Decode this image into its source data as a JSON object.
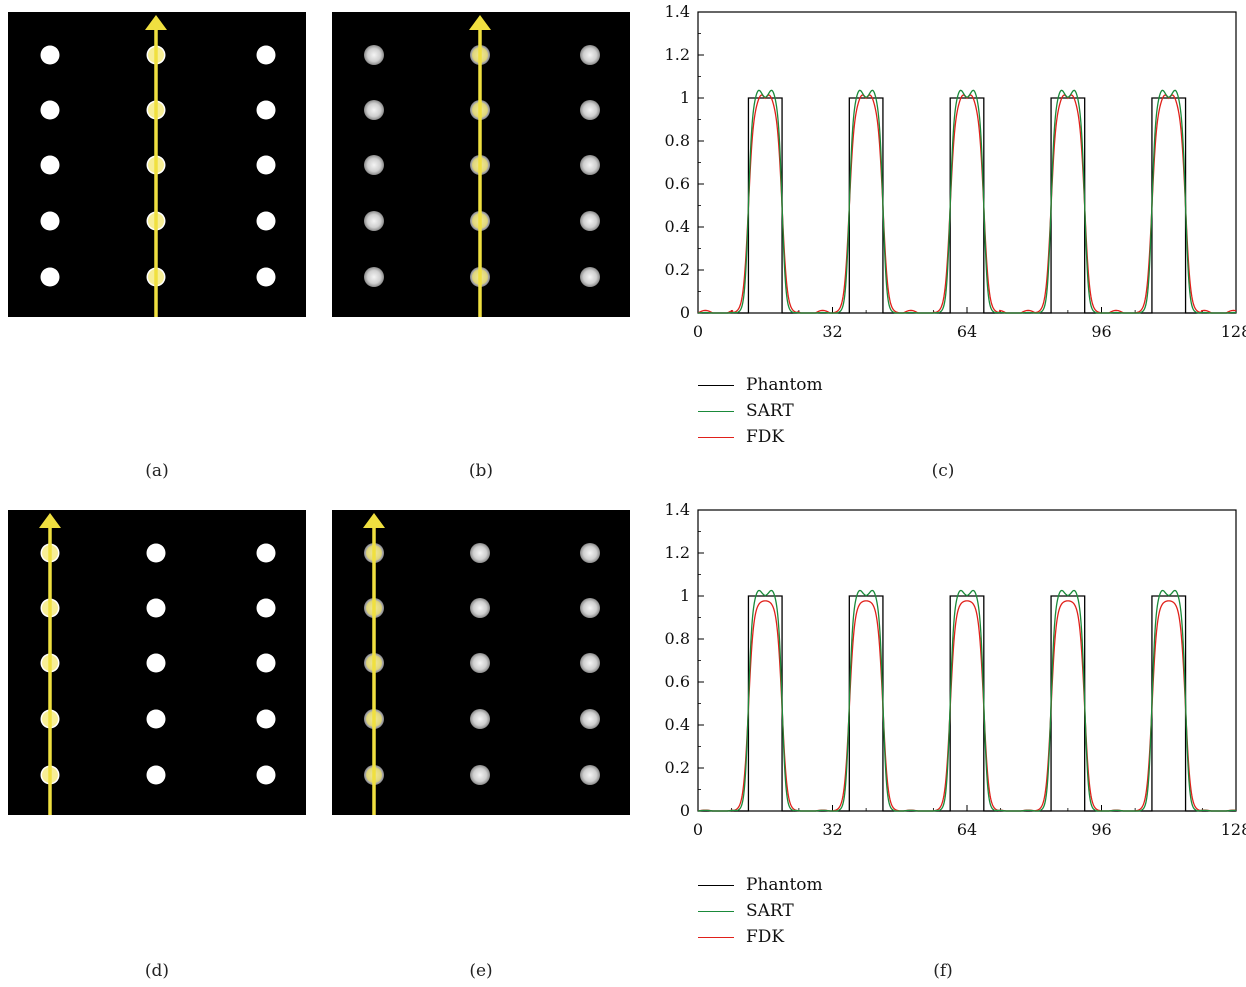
{
  "captions": {
    "a": "(a)",
    "b": "(b)",
    "c": "(c)",
    "d": "(d)",
    "e": "(e)",
    "f": "(f)"
  },
  "colors": {
    "phantom": "#000000",
    "sart": "#1a8a3a",
    "fdk": "#e0201a",
    "arrow": "#f0e040",
    "dot_sharp": "#ffffff",
    "dot_soft": "#d8d8d8"
  },
  "images": {
    "a": {
      "arrow_column": 2,
      "style": "sharp"
    },
    "b": {
      "arrow_column": 2,
      "style": "soft"
    },
    "d": {
      "arrow_column": 1,
      "style": "sharp"
    },
    "e": {
      "arrow_column": 1,
      "style": "soft"
    }
  },
  "chart_data": [
    {
      "panel": "c",
      "type": "line",
      "xlim": [
        0,
        128
      ],
      "ylim": [
        0,
        1.4
      ],
      "x_ticks": [
        "0",
        "32",
        "64",
        "96",
        "128"
      ],
      "y_ticks": [
        "0",
        "0.2",
        "0.4",
        "0.6",
        "0.8",
        "1",
        "1.2",
        "1.4"
      ],
      "legend_position": "bottom-left",
      "pulses": [
        {
          "start": 12,
          "end": 20
        },
        {
          "start": 36,
          "end": 44
        },
        {
          "start": 60,
          "end": 68
        },
        {
          "start": 84,
          "end": 92
        },
        {
          "start": 108,
          "end": 116
        }
      ],
      "series": [
        {
          "name": "Phantom",
          "peak": 1.0,
          "overshoot": 0.0,
          "ripple": 0.0
        },
        {
          "name": "SART",
          "peak": 1.0,
          "overshoot": 0.04,
          "ripple": 0.002
        },
        {
          "name": "FDK",
          "peak": 1.0,
          "overshoot": 0.03,
          "ripple": 0.012
        }
      ]
    },
    {
      "panel": "f",
      "type": "line",
      "xlim": [
        0,
        128
      ],
      "ylim": [
        0,
        1.4
      ],
      "x_ticks": [
        "0",
        "32",
        "64",
        "96",
        "128"
      ],
      "y_ticks": [
        "0",
        "0.2",
        "0.4",
        "0.6",
        "0.8",
        "1",
        "1.2",
        "1.4"
      ],
      "legend_position": "bottom-left",
      "pulses": [
        {
          "start": 12,
          "end": 20
        },
        {
          "start": 36,
          "end": 44
        },
        {
          "start": 60,
          "end": 68
        },
        {
          "start": 84,
          "end": 92
        },
        {
          "start": 108,
          "end": 116
        }
      ],
      "series": [
        {
          "name": "Phantom",
          "peak": 1.0,
          "overshoot": 0.0,
          "ripple": 0.0
        },
        {
          "name": "SART",
          "peak": 1.0,
          "overshoot": 0.03,
          "ripple": 0.003
        },
        {
          "name": "FDK",
          "peak": 0.98,
          "overshoot": 0.0,
          "ripple": 0.004
        }
      ]
    }
  ]
}
